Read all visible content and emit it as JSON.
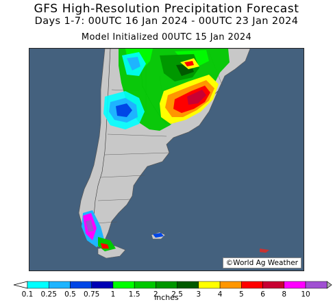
{
  "header": {
    "title": "GFS High-Resolution Precipitation Forecast",
    "period": "Days 1-7: 00UTC 16 Jan 2024 - 00UTC 23 Jan 2024",
    "init": "Model Initialized 00UTC 15 Jan 2024"
  },
  "map": {
    "region": "South America (Argentina, Chile, Uruguay, southern Brazil)",
    "credit": "©World Ag Weather",
    "ocean_color": "#44617e",
    "land_color": "#c8c8c8"
  },
  "legend": {
    "units": "inches",
    "levels": [
      "0.1",
      "0.25",
      "0.5",
      "0.75",
      "1",
      "1.5",
      "2",
      "2.5",
      "3",
      "4",
      "5",
      "6",
      "8",
      "10"
    ],
    "colors": [
      "#00ffff",
      "#1eb4ff",
      "#0046e6",
      "#0000b4",
      "#00ff00",
      "#00c800",
      "#009600",
      "#005a00",
      "#ffff00",
      "#ff9600",
      "#ff0000",
      "#c80032",
      "#ff00ff",
      "#a050d2",
      "#b4b4b4"
    ]
  }
}
